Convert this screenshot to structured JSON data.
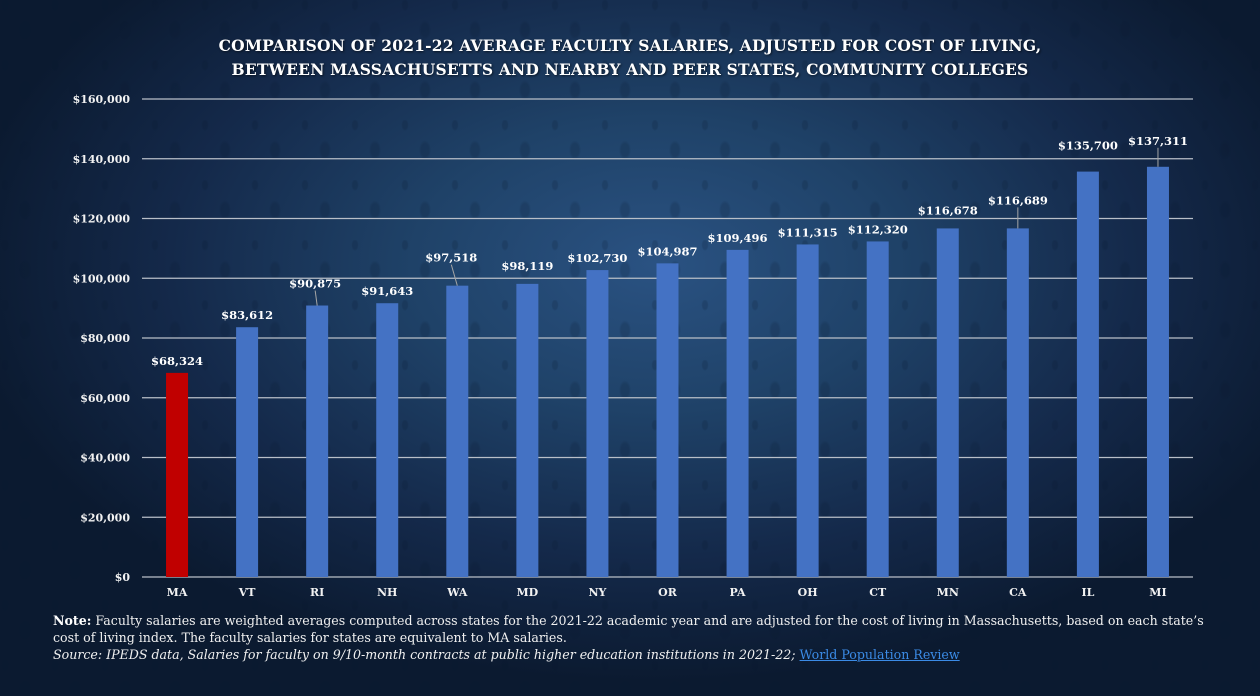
{
  "colors": {
    "highlight_bar": "#c00000",
    "default_bar": "#4472c4",
    "gridline": "#b9bfc8",
    "link": "#3b8be6"
  },
  "chart_data": {
    "type": "bar",
    "title_lines": [
      "COMPARISON OF 2021-22 AVERAGE FACULTY SALARIES, ADJUSTED FOR COST OF LIVING,",
      "BETWEEN MASSACHUSETTS AND NEARBY AND PEER STATES, COMMUNITY COLLEGES"
    ],
    "xlabel": "",
    "ylabel": "",
    "categories": [
      "MA",
      "VT",
      "RI",
      "NH",
      "WA",
      "MD",
      "NY",
      "OR",
      "PA",
      "OH",
      "CT",
      "MN",
      "CA",
      "IL",
      "MI"
    ],
    "values": [
      68324,
      83612,
      90875,
      91643,
      97518,
      98119,
      102730,
      104987,
      109496,
      111315,
      112320,
      116678,
      116689,
      135700,
      137311
    ],
    "value_labels": [
      "$68,324",
      "$83,612",
      "$90,875",
      "$91,643",
      "$97,518",
      "$98,119",
      "$102,730",
      "$104,987",
      "$109,496",
      "$111,315",
      "$112,320",
      "$116,678",
      "$116,689",
      "$135,700",
      "$137,311"
    ],
    "highlight_category": "MA",
    "ylim": [
      0,
      160000
    ],
    "yticks": [
      0,
      20000,
      40000,
      60000,
      80000,
      100000,
      120000,
      140000,
      160000
    ],
    "ytick_labels": [
      "$0",
      "$20,000",
      "$40,000",
      "$60,000",
      "$80,000",
      "$100,000",
      "$120,000",
      "$140,000",
      "$160,000"
    ],
    "grid": true,
    "legend": "none"
  },
  "notes": {
    "note_label": "Note:",
    "note_text": " Faculty salaries are weighted averages computed across states for the 2021-22 academic year and are adjusted for the cost of living in Massachusetts, based on each state’s cost of living index. The faculty salaries for states are equivalent to MA salaries.",
    "source_text": "Source: IPEDS data, Salaries for faculty on 9/10-month contracts at public higher education institutions in 2021-22;",
    "source_link": "World Population Review"
  }
}
